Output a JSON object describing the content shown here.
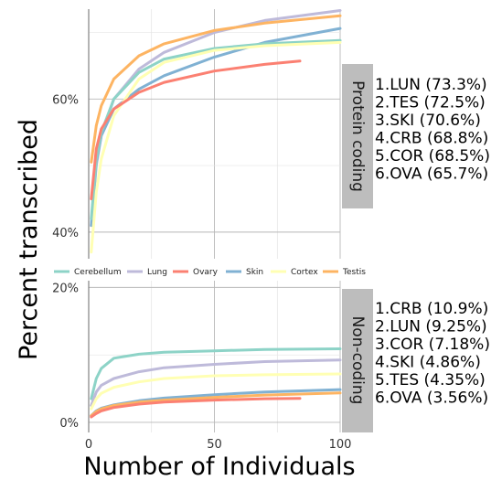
{
  "chart_data": {
    "type": "line",
    "xlabel": "Number of Individuals",
    "ylabel": "Percent transcribed",
    "x_ticks": [
      "0",
      "50",
      "100"
    ],
    "legend": {
      "placement": "between-panels",
      "entries": [
        {
          "name": "Cerebellum",
          "color": "#8dd3c7"
        },
        {
          "name": "Lung",
          "color": "#bebada"
        },
        {
          "name": "Ovary",
          "color": "#fb8072"
        },
        {
          "name": "Skin",
          "color": "#80b1d3"
        },
        {
          "name": "Cortex",
          "color": "#ffffb3"
        },
        {
          "name": "Testis",
          "color": "#fdb462"
        }
      ]
    },
    "panels": [
      {
        "strip": "Protein coding",
        "ylim": [
          36,
          73.5
        ],
        "y_ticks": [
          {
            "value": 40,
            "label": "40%"
          },
          {
            "value": 60,
            "label": "60%"
          }
        ],
        "ranking": [
          "1.LUN (73.3%)",
          "2.TES (72.5%)",
          "3.SKI (70.6%)",
          "4.CRB (68.8%)",
          "5.COR (68.5%)",
          "6.OVA (65.7%)"
        ],
        "series": [
          {
            "name": "Lung",
            "color": "#bebada",
            "x": [
              1,
              3,
              5,
              10,
              20,
              30,
              50,
              70,
              100
            ],
            "values": [
              41,
              50,
              54.5,
              60,
              64.5,
              67,
              70,
              71.8,
              73.3
            ]
          },
          {
            "name": "Testis",
            "color": "#fdb462",
            "x": [
              1,
              3,
              5,
              10,
              20,
              30,
              50,
              70,
              100
            ],
            "values": [
              50.5,
              56,
              59,
              63,
              66.5,
              68.3,
              70.3,
              71.4,
              72.5
            ]
          },
          {
            "name": "Skin",
            "color": "#80b1d3",
            "x": [
              1,
              3,
              5,
              10,
              20,
              30,
              50,
              70,
              100
            ],
            "values": [
              41,
              50.5,
              54.5,
              58.5,
              61.5,
              63.5,
              66.3,
              68.5,
              70.6
            ]
          },
          {
            "name": "Cerebellum",
            "color": "#8dd3c7",
            "x": [
              1,
              3,
              5,
              10,
              20,
              30,
              50,
              70,
              100
            ],
            "values": [
              42,
              51,
              55,
              60,
              64,
              66,
              67.6,
              68.3,
              68.8
            ]
          },
          {
            "name": "Cortex",
            "color": "#ffffb3",
            "x": [
              1,
              3,
              5,
              10,
              20,
              30,
              50,
              70,
              100
            ],
            "values": [
              37,
              46,
              51,
              57.5,
              63,
              65.5,
              67.3,
              68,
              68.5
            ]
          },
          {
            "name": "Ovary",
            "color": "#fb8072",
            "x": [
              1,
              3,
              5,
              10,
              20,
              30,
              50,
              70,
              84
            ],
            "values": [
              45,
              52.5,
              55.5,
              58.5,
              61,
              62.5,
              64.2,
              65.2,
              65.7
            ]
          }
        ]
      },
      {
        "strip": "Non-coding",
        "ylim": [
          -1.5,
          21
        ],
        "y_ticks": [
          {
            "value": 0,
            "label": "0%"
          },
          {
            "value": 20,
            "label": "20%"
          }
        ],
        "ranking": [
          "1.CRB (10.9%)",
          "2.LUN (9.25%)",
          "3.COR (7.18%)",
          "4.SKI (4.86%)",
          "5.TES (4.35%)",
          "6.OVA (3.56%)"
        ],
        "series": [
          {
            "name": "Cerebellum",
            "color": "#8dd3c7",
            "x": [
              1,
              3,
              5,
              10,
              20,
              30,
              50,
              70,
              100
            ],
            "values": [
              3.5,
              6.5,
              8,
              9.5,
              10.1,
              10.4,
              10.6,
              10.8,
              10.9
            ]
          },
          {
            "name": "Lung",
            "color": "#bebada",
            "x": [
              1,
              3,
              5,
              10,
              20,
              30,
              50,
              70,
              100
            ],
            "values": [
              2.5,
              4.5,
              5.5,
              6.5,
              7.5,
              8.1,
              8.6,
              9,
              9.25
            ]
          },
          {
            "name": "Cortex",
            "color": "#ffffb3",
            "x": [
              1,
              3,
              5,
              10,
              20,
              30,
              50,
              70,
              100
            ],
            "values": [
              2,
              3.5,
              4.3,
              5.2,
              6,
              6.5,
              6.9,
              7.05,
              7.18
            ]
          },
          {
            "name": "Skin",
            "color": "#80b1d3",
            "x": [
              1,
              3,
              5,
              10,
              20,
              30,
              50,
              70,
              100
            ],
            "values": [
              1,
              1.7,
              2.1,
              2.6,
              3.2,
              3.6,
              4.1,
              4.5,
              4.86
            ]
          },
          {
            "name": "Testis",
            "color": "#fdb462",
            "x": [
              1,
              3,
              5,
              10,
              20,
              30,
              50,
              70,
              100
            ],
            "values": [
              1,
              1.6,
              2,
              2.5,
              3,
              3.3,
              3.7,
              4.05,
              4.35
            ]
          },
          {
            "name": "Ovary",
            "color": "#fb8072",
            "x": [
              1,
              3,
              5,
              10,
              20,
              30,
              50,
              70,
              84
            ],
            "values": [
              0.8,
              1.3,
              1.7,
              2.2,
              2.7,
              3,
              3.3,
              3.5,
              3.56
            ]
          }
        ]
      }
    ]
  }
}
